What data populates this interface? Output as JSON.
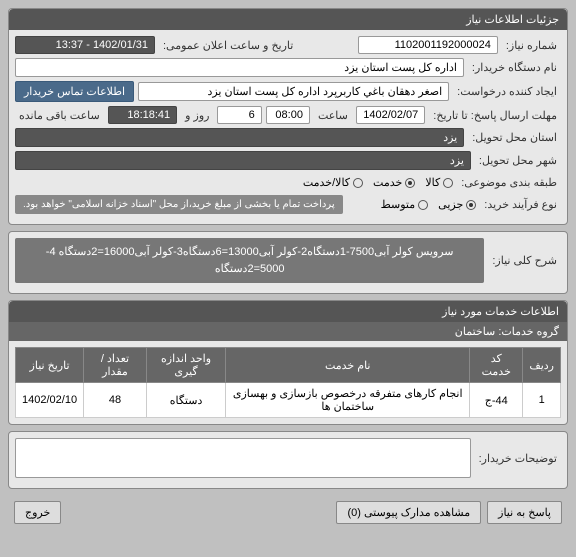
{
  "panel1": {
    "title": "جزئیات اطلاعات نیاز",
    "labels": {
      "reqNo": "شماره نیاز:",
      "pubDate": "تاریخ و ساعت اعلان عمومی:",
      "buyer": "نام دستگاه خریدار:",
      "creator": "ایجاد کننده درخواست:",
      "deadline": "مهلت ارسال پاسخ: تا تاریخ:",
      "hour": "ساعت",
      "dayAnd": "روز و",
      "remain": "ساعت باقی مانده",
      "province": "استان محل تحویل:",
      "city": "شهر محل تحویل:",
      "category": "طبقه بندی موضوعی:",
      "processType": "نوع فرآیند خرید:",
      "contactBtn": "اطلاعات تماس خریدار"
    },
    "values": {
      "reqNo": "1102001192000024",
      "pubDate": "1402/01/31 - 13:37",
      "buyer": "اداره کل پست استان یزد",
      "creator": "اصغر دهقان باغي کاربرپرد اداره کل پست استان یزد",
      "deadlineDate": "1402/02/07",
      "deadlineHour": "08:00",
      "days": "6",
      "remainTime": "18:18:41",
      "province": "یزد",
      "city": "یزد"
    },
    "categoryOptions": {
      "o1": "کالا",
      "o2": "خدمت",
      "o3": "کالا/خدمت"
    },
    "processOptions": {
      "o1": "جزیی",
      "o2": "متوسط"
    },
    "note": "پرداخت تمام یا بخشی از مبلغ خرید،از محل \"اسناد خزانه اسلامی\" خواهد بود."
  },
  "panel2": {
    "label": "شرح کلی نیاز:",
    "desc": "سرویس کولر آبی7500-1دستگاه2-کولر آبی13000=6دستگاه3-کولر آبی16000=2دستگاه 4-5000=2دستگاه"
  },
  "panel3": {
    "title": "اطلاعات خدمات مورد نیاز",
    "groupLabel": "گروه خدمات:",
    "groupValue": "ساختمان",
    "headers": {
      "h1": "ردیف",
      "h2": "کد خدمت",
      "h3": "نام خدمت",
      "h4": "واحد اندازه گیری",
      "h5": "تعداد / مقدار",
      "h6": "تاریخ نیاز"
    },
    "row": {
      "c1": "1",
      "c2": "44-ج",
      "c3": "انجام کارهای متفرقه درخصوص بازسازی و بهسازی ساختمان ها",
      "c4": "دستگاه",
      "c5": "48",
      "c6": "1402/02/10"
    }
  },
  "panel4": {
    "label": "توضیحات خریدار:"
  },
  "footer": {
    "b1": "پاسخ به نیاز",
    "b2": "مشاهده مدارک پیوستی (0)",
    "b3": "خروج"
  }
}
